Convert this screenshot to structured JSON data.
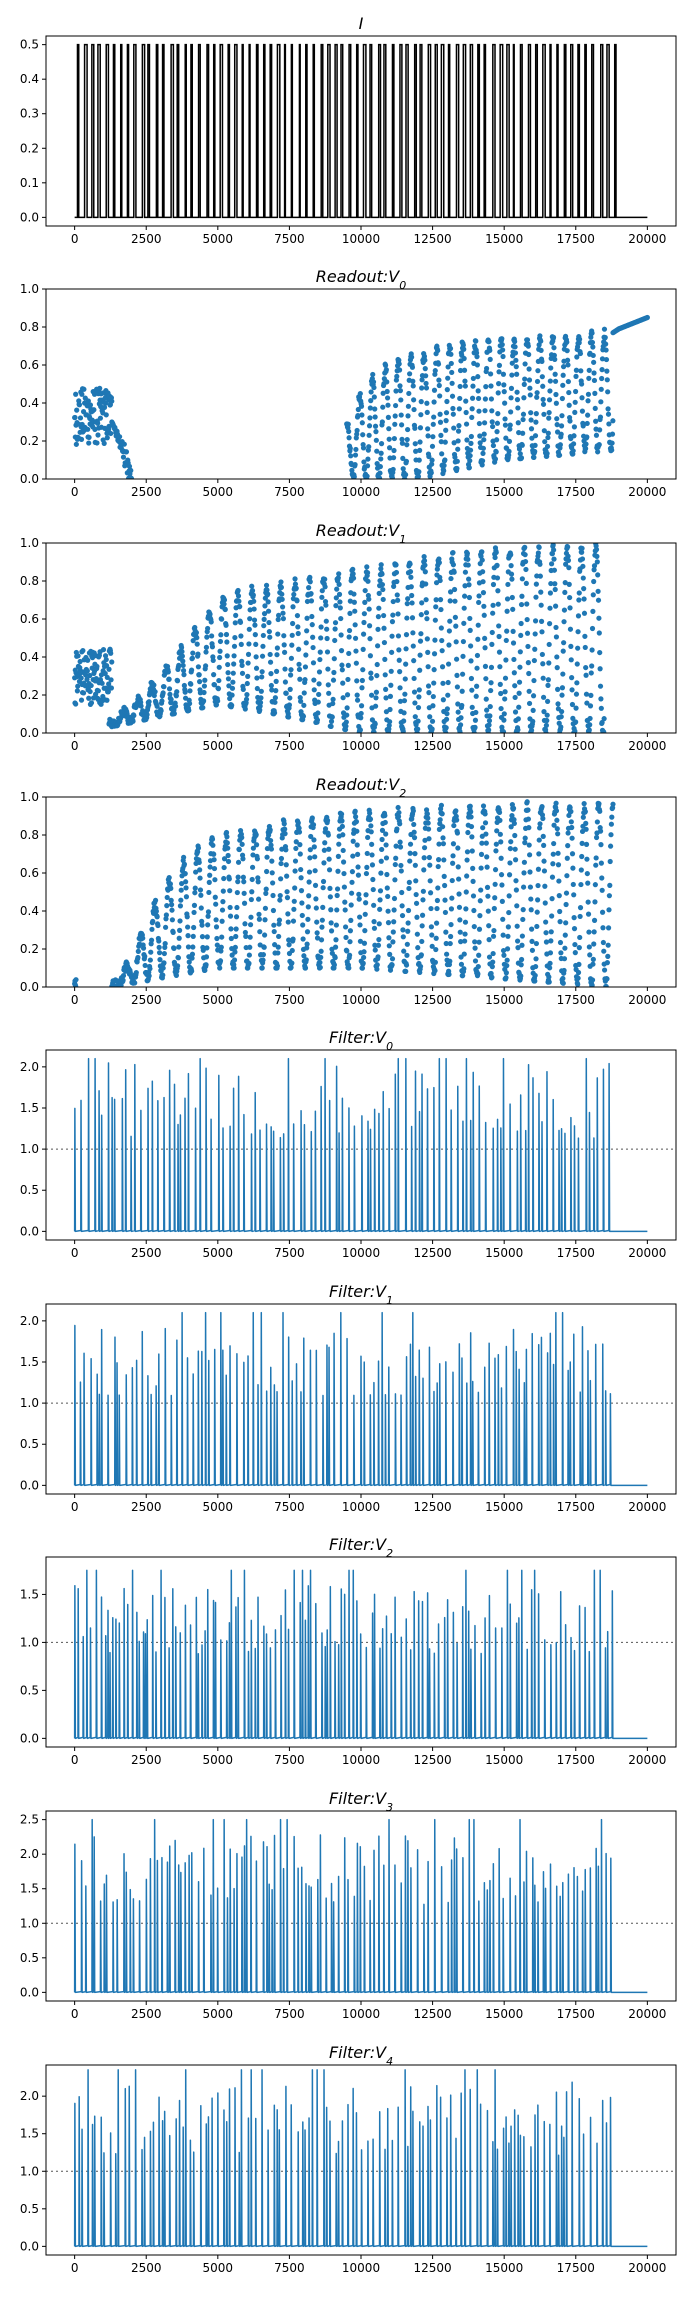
{
  "figure": {
    "background": "#ffffff"
  },
  "chart_data": [
    {
      "type": "line",
      "title": "I",
      "title_sub": "",
      "xlim": [
        -1000,
        21000
      ],
      "ylim": [
        -0.025,
        0.525
      ],
      "xticks": [
        0,
        2500,
        5000,
        7500,
        10000,
        12500,
        15000,
        17500,
        20000
      ],
      "yticks": [
        0.0,
        0.1,
        0.2,
        0.3,
        0.4,
        0.5
      ],
      "ytick_labels": [
        "0.0",
        "0.1",
        "0.2",
        "0.3",
        "0.4",
        "0.5"
      ],
      "threshold": null,
      "series": [
        {
          "color": "#000000",
          "style": "pulses",
          "x_range": [
            0,
            20000
          ],
          "pulse_end": 18800,
          "pulse_period": 250,
          "low": 0.0,
          "high": 0.5,
          "tail": 0.0
        }
      ]
    },
    {
      "type": "scatter",
      "title": "Readout:V",
      "title_sub": "0",
      "xlim": [
        -1000,
        21000
      ],
      "ylim": [
        0.0,
        1.0
      ],
      "xticks": [
        0,
        2500,
        5000,
        7500,
        10000,
        12500,
        15000,
        17500,
        20000
      ],
      "yticks": [
        0.0,
        0.2,
        0.4,
        0.6,
        0.8,
        1.0
      ],
      "ytick_labels": [
        "0.0",
        "0.2",
        "0.4",
        "0.6",
        "0.8",
        "1.0"
      ],
      "threshold": null,
      "series": [
        {
          "color": "#1f77b4",
          "early": {
            "x": [
              0,
              1300
            ],
            "low": 0.18,
            "high": 0.48
          },
          "early_decay": {
            "x": [
              1300,
              2000
            ],
            "from": 0.3,
            "to": 0.0
          },
          "envelope": [
            [
              8500,
              0.0
            ],
            [
              9500,
              0.3
            ],
            [
              10000,
              0.45
            ],
            [
              10500,
              0.55
            ],
            [
              11000,
              0.6
            ],
            [
              12000,
              0.65
            ],
            [
              13000,
              0.7
            ],
            [
              15000,
              0.73
            ],
            [
              17000,
              0.74
            ],
            [
              18800,
              0.77
            ],
            [
              19000,
              0.79
            ],
            [
              20000,
              0.85
            ]
          ],
          "oscillation_start": 9500,
          "oscillation_end": 18800,
          "trough_trend": [
            [
              9500,
              0.0
            ],
            [
              12000,
              0.0
            ],
            [
              15000,
              0.1
            ],
            [
              18800,
              0.15
            ]
          ],
          "period": 450
        }
      ]
    },
    {
      "type": "scatter",
      "title": "Readout:V",
      "title_sub": "1",
      "xlim": [
        -1000,
        21000
      ],
      "ylim": [
        0.0,
        1.0
      ],
      "xticks": [
        0,
        2500,
        5000,
        7500,
        10000,
        12500,
        15000,
        17500,
        20000
      ],
      "yticks": [
        0.0,
        0.2,
        0.4,
        0.6,
        0.8,
        1.0
      ],
      "ytick_labels": [
        "0.0",
        "0.2",
        "0.4",
        "0.6",
        "0.8",
        "1.0"
      ],
      "threshold": null,
      "series": [
        {
          "color": "#1f77b4",
          "early": {
            "x": [
              0,
              1300
            ],
            "low": 0.15,
            "high": 0.45
          },
          "envelope": [
            [
              1200,
              0.05
            ],
            [
              2000,
              0.15
            ],
            [
              3000,
              0.3
            ],
            [
              4000,
              0.5
            ],
            [
              5000,
              0.7
            ],
            [
              6000,
              0.75
            ],
            [
              8000,
              0.8
            ],
            [
              10000,
              0.85
            ],
            [
              12000,
              0.9
            ],
            [
              14000,
              0.95
            ],
            [
              16000,
              0.97
            ],
            [
              18500,
              0.98
            ]
          ],
          "oscillation_start": 1200,
          "oscillation_end": 18500,
          "trough_trend": [
            [
              1200,
              0.03
            ],
            [
              5000,
              0.15
            ],
            [
              7000,
              0.1
            ],
            [
              10000,
              0.0
            ],
            [
              18500,
              0.0
            ]
          ],
          "period": 500
        }
      ]
    },
    {
      "type": "scatter",
      "title": "Readout:V",
      "title_sub": "2",
      "xlim": [
        -1000,
        21000
      ],
      "ylim": [
        0.0,
        1.0
      ],
      "xticks": [
        0,
        2500,
        5000,
        7500,
        10000,
        12500,
        15000,
        17500,
        20000
      ],
      "yticks": [
        0.0,
        0.2,
        0.4,
        0.6,
        0.8,
        1.0
      ],
      "ytick_labels": [
        "0.0",
        "0.2",
        "0.4",
        "0.6",
        "0.8",
        "1.0"
      ],
      "threshold": null,
      "series": [
        {
          "color": "#1f77b4",
          "early": {
            "x": [
              0,
              50
            ],
            "low": 0.0,
            "high": 0.04
          },
          "envelope": [
            [
              1300,
              0.0
            ],
            [
              2000,
              0.15
            ],
            [
              2500,
              0.35
            ],
            [
              3000,
              0.5
            ],
            [
              4000,
              0.7
            ],
            [
              5000,
              0.78
            ],
            [
              7000,
              0.85
            ],
            [
              9000,
              0.9
            ],
            [
              12000,
              0.93
            ],
            [
              15000,
              0.95
            ],
            [
              18800,
              0.96
            ]
          ],
          "oscillation_start": 1300,
          "oscillation_end": 18800,
          "trough_trend": [
            [
              1300,
              0.0
            ],
            [
              5000,
              0.1
            ],
            [
              10000,
              0.1
            ],
            [
              18800,
              0.0
            ]
          ],
          "period": 500
        }
      ]
    },
    {
      "type": "line",
      "title": "Filter:V",
      "title_sub": "0",
      "xlim": [
        -1000,
        21000
      ],
      "ylim": [
        -0.105,
        2.205
      ],
      "xticks": [
        0,
        2500,
        5000,
        7500,
        10000,
        12500,
        15000,
        17500,
        20000
      ],
      "yticks": [
        0.0,
        0.5,
        1.0,
        1.5,
        2.0
      ],
      "ytick_labels": [
        "0.0",
        "0.5",
        "1.0",
        "1.5",
        "2.0"
      ],
      "threshold": 1.0,
      "series": [
        {
          "color": "#1f77b4",
          "style": "spikes",
          "x_range": [
            0,
            20000
          ],
          "spike_end": 18800,
          "max": 2.1,
          "typical": 2.05,
          "period": 220,
          "tail": 0.0
        }
      ]
    },
    {
      "type": "line",
      "title": "Filter:V",
      "title_sub": "1",
      "xlim": [
        -1000,
        21000
      ],
      "ylim": [
        -0.105,
        2.205
      ],
      "xticks": [
        0,
        2500,
        5000,
        7500,
        10000,
        12500,
        15000,
        17500,
        20000
      ],
      "yticks": [
        0.0,
        0.5,
        1.0,
        1.5,
        2.0
      ],
      "ytick_labels": [
        "0.0",
        "0.5",
        "1.0",
        "1.5",
        "2.0"
      ],
      "threshold": 1.0,
      "series": [
        {
          "color": "#1f77b4",
          "style": "spikes",
          "x_range": [
            0,
            20000
          ],
          "spike_end": 18800,
          "max": 2.1,
          "typical": 1.95,
          "period": 200,
          "tail": 0.0
        }
      ]
    },
    {
      "type": "line",
      "title": "Filter:V",
      "title_sub": "2",
      "xlim": [
        -1000,
        21000
      ],
      "ylim": [
        -0.09,
        1.89
      ],
      "xticks": [
        0,
        2500,
        5000,
        7500,
        10000,
        12500,
        15000,
        17500,
        20000
      ],
      "yticks": [
        0.0,
        0.5,
        1.0,
        1.5
      ],
      "ytick_labels": [
        "0.0",
        "0.5",
        "1.0",
        "1.5"
      ],
      "threshold": 1.0,
      "series": [
        {
          "color": "#1f77b4",
          "style": "spikes",
          "x_range": [
            0,
            20000
          ],
          "spike_end": 18800,
          "max": 1.75,
          "typical": 1.6,
          "period": 180,
          "tail": 0.0
        }
      ]
    },
    {
      "type": "line",
      "title": "Filter:V",
      "title_sub": "3",
      "xlim": [
        -1000,
        21000
      ],
      "ylim": [
        -0.125,
        2.625
      ],
      "xticks": [
        0,
        2500,
        5000,
        7500,
        10000,
        12500,
        15000,
        17500,
        20000
      ],
      "yticks": [
        0.0,
        0.5,
        1.0,
        1.5,
        2.0,
        2.5
      ],
      "ytick_labels": [
        "0.0",
        "0.5",
        "1.0",
        "1.5",
        "2.0",
        "2.5"
      ],
      "threshold": 1.0,
      "series": [
        {
          "color": "#1f77b4",
          "style": "spikes",
          "x_range": [
            0,
            20000
          ],
          "spike_end": 18800,
          "max": 2.5,
          "typical": 2.3,
          "period": 200,
          "tail": 0.0
        }
      ]
    },
    {
      "type": "line",
      "title": "Filter:V",
      "title_sub": "4",
      "xlim": [
        -1000,
        21000
      ],
      "ylim": [
        -0.115,
        2.415
      ],
      "xticks": [
        0,
        2500,
        5000,
        7500,
        10000,
        12500,
        15000,
        17500,
        20000
      ],
      "yticks": [
        0.0,
        0.5,
        1.0,
        1.5,
        2.0
      ],
      "ytick_labels": [
        "0.0",
        "0.5",
        "1.0",
        "1.5",
        "2.0"
      ],
      "threshold": 1.0,
      "series": [
        {
          "color": "#1f77b4",
          "style": "spikes",
          "x_range": [
            0,
            20000
          ],
          "spike_end": 18800,
          "max": 2.35,
          "typical": 2.2,
          "period": 200,
          "tail": 0.0
        }
      ]
    }
  ]
}
